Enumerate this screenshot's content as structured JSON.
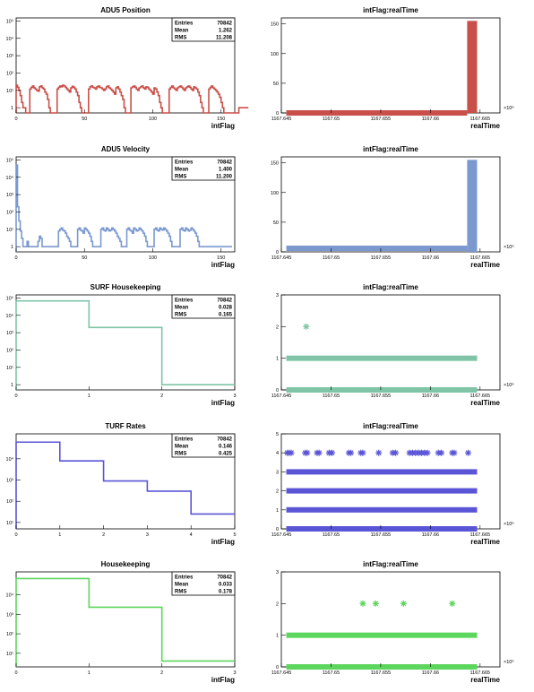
{
  "chart_data": [
    {
      "type": "bar",
      "title": "ADU5 Position",
      "xlabel": "intFlag",
      "ylabel": "",
      "xlim": [
        0,
        160
      ],
      "xticks": [
        0,
        50,
        100,
        150
      ],
      "yscale": "log",
      "ylim": [
        0.5,
        150000
      ],
      "yticks": [
        1,
        10,
        100,
        1000,
        10000,
        100000
      ],
      "color": "#c9504a",
      "stats": {
        "entries_label": "Entries",
        "entries": "70842",
        "mean_label": "Mean",
        "mean": "1.262",
        "rms_label": "RMS",
        "rms": "11.208"
      },
      "bins": {
        "x0": 0,
        "width": 1
      },
      "values": [
        20,
        15,
        10,
        5,
        2,
        1,
        1,
        0.5,
        0.5,
        0.5,
        12,
        15,
        18,
        14,
        12,
        10,
        9,
        16,
        18,
        14,
        12,
        8,
        6,
        3,
        1,
        0.5,
        0.5,
        0.5,
        0.5,
        0.5,
        12,
        15,
        18,
        16,
        20,
        18,
        15,
        12,
        10,
        8,
        14,
        17,
        15,
        12,
        8,
        5,
        2,
        1,
        0.5,
        0.5,
        0.5,
        0.5,
        0.5,
        12,
        16,
        18,
        15,
        14,
        12,
        16,
        18,
        15,
        14,
        12,
        10,
        12,
        16,
        18,
        14,
        12,
        10,
        8,
        6,
        14,
        16,
        12,
        8,
        5,
        3,
        1,
        0.5,
        0.5,
        0.5,
        0.5,
        14,
        16,
        18,
        15,
        12,
        10,
        14,
        16,
        18,
        14,
        12,
        16,
        15,
        12,
        10,
        8,
        6,
        14,
        12,
        8,
        5,
        2,
        1,
        0.5,
        0.5,
        0.5,
        0.5,
        0.5,
        12,
        15,
        18,
        14,
        12,
        10,
        14,
        16,
        18,
        15,
        12,
        10,
        14,
        16,
        18,
        15,
        12,
        10,
        16,
        14,
        12,
        8,
        5,
        2,
        1,
        0.5,
        0.5,
        0.5,
        0.5,
        12,
        15,
        18,
        14,
        12,
        10,
        8,
        6,
        4,
        2,
        1,
        0.5,
        0.5,
        0.5,
        0.5,
        0.5,
        0.5,
        0.5,
        0.5,
        0.5,
        0.5,
        0.5,
        1,
        1,
        1,
        1,
        1,
        1,
        1
      ]
    },
    {
      "type": "scatter",
      "title": "intFlag:realTime",
      "xlabel": "realTime",
      "ylabel": "",
      "xlim": [
        1167.645,
        1167.667
      ],
      "xticks": [
        1167.645,
        1167.65,
        1167.655,
        1167.66,
        1167.665
      ],
      "xtick_labels": [
        "1167.645",
        "1167.65",
        "1167.655",
        "1167.66",
        "1167.665"
      ],
      "x_multiplier": "×10⁶",
      "ylim": [
        0,
        160
      ],
      "yticks": [
        0,
        50,
        100,
        150
      ],
      "color": "#c9504a",
      "bands": [
        {
          "y": 0,
          "x_from": 1167.6455,
          "x_to": 1167.6637
        }
      ],
      "spike": {
        "x_from": 1167.6637,
        "x_to": 1167.6647,
        "y_from": 0,
        "y_to": 155
      }
    },
    {
      "type": "bar",
      "title": "ADU5 Velocity",
      "xlabel": "intFlag",
      "ylabel": "",
      "xlim": [
        0,
        160
      ],
      "xticks": [
        0,
        50,
        100,
        150
      ],
      "yscale": "log",
      "ylim": [
        0.5,
        150000
      ],
      "yticks": [
        1,
        10,
        100,
        1000,
        10000,
        100000
      ],
      "color": "#7b99cf",
      "stats": {
        "entries_label": "Entries",
        "entries": "70842",
        "mean_label": "Mean",
        "mean": "1.400",
        "rms_label": "RMS",
        "rms": "11.200"
      },
      "bins": {
        "x0": 0,
        "width": 1
      },
      "values": [
        50000,
        200,
        30,
        8,
        3,
        1,
        1,
        1,
        2,
        1,
        1,
        1,
        1,
        1,
        1,
        1,
        2,
        4,
        3,
        1,
        1,
        1,
        1,
        1,
        1,
        1,
        1,
        1,
        1,
        1,
        1,
        8,
        10,
        12,
        9,
        8,
        6,
        4,
        3,
        2,
        1,
        1,
        1,
        1,
        1,
        10,
        12,
        9,
        8,
        6,
        12,
        10,
        8,
        6,
        4,
        2,
        1,
        1,
        1,
        1,
        1,
        1,
        10,
        12,
        9,
        8,
        12,
        10,
        8,
        9,
        12,
        10,
        8,
        6,
        4,
        3,
        2,
        1,
        1,
        1,
        1,
        10,
        12,
        9,
        8,
        6,
        12,
        10,
        8,
        9,
        12,
        10,
        8,
        6,
        4,
        2,
        1,
        1,
        1,
        1,
        1,
        10,
        12,
        9,
        8,
        12,
        10,
        9,
        12,
        10,
        8,
        6,
        4,
        2,
        1,
        1,
        1,
        1,
        1,
        1,
        10,
        12,
        9,
        8,
        12,
        10,
        8,
        9,
        12,
        10,
        8,
        6,
        4,
        2,
        1,
        1,
        1,
        1,
        1,
        1,
        1,
        1,
        1,
        1,
        1,
        1,
        1,
        1,
        1,
        1,
        1,
        1,
        1,
        1,
        1,
        1,
        1,
        1
      ]
    },
    {
      "type": "scatter",
      "title": "intFlag:realTime",
      "xlabel": "realTime",
      "ylabel": "",
      "xlim": [
        1167.645,
        1167.667
      ],
      "xticks": [
        1167.645,
        1167.65,
        1167.655,
        1167.66,
        1167.665
      ],
      "xtick_labels": [
        "1167.645",
        "1167.65",
        "1167.655",
        "1167.66",
        "1167.665"
      ],
      "x_multiplier": "×10⁶",
      "ylim": [
        0,
        160
      ],
      "yticks": [
        0,
        50,
        100,
        150
      ],
      "color": "#7b99cf",
      "bands": [
        {
          "y": 6,
          "x_from": 1167.6455,
          "x_to": 1167.6637
        }
      ],
      "spike": {
        "x_from": 1167.6637,
        "x_to": 1167.6647,
        "y_from": 0,
        "y_to": 155
      }
    },
    {
      "type": "bar",
      "title": "SURF Housekeeping",
      "xlabel": "intFlag",
      "ylabel": "",
      "xlim": [
        0,
        3
      ],
      "xticks": [
        0,
        1,
        2,
        3
      ],
      "yscale": "log",
      "ylim": [
        0.5,
        150000
      ],
      "yticks": [
        1,
        10,
        100,
        1000,
        10000,
        100000
      ],
      "color": "#7fc4a6",
      "stats": {
        "entries_label": "Entries",
        "entries": "70842",
        "mean_label": "Mean",
        "mean": "0.028",
        "rms_label": "RMS",
        "rms": "0.165"
      },
      "bins": {
        "x0": 0,
        "width": 1
      },
      "values": [
        68000,
        2000,
        1
      ]
    },
    {
      "type": "scatter",
      "title": "intFlag:realTime",
      "xlabel": "realTime",
      "ylabel": "",
      "xlim": [
        1167.645,
        1167.667
      ],
      "xticks": [
        1167.645,
        1167.65,
        1167.655,
        1167.66,
        1167.665
      ],
      "xtick_labels": [
        "1167.645",
        "1167.65",
        "1167.655",
        "1167.66",
        "1167.665"
      ],
      "x_multiplier": "×10⁶",
      "ylim": [
        0,
        3
      ],
      "yticks": [
        0,
        1,
        2,
        3
      ],
      "color": "#7fc4a6",
      "bands": [
        {
          "y": 0,
          "x_from": 1167.6455,
          "x_to": 1167.6647
        },
        {
          "y": 1,
          "x_from": 1167.6455,
          "x_to": 1167.6647
        }
      ],
      "points": [
        {
          "x": 1167.6475,
          "y": 2
        }
      ]
    },
    {
      "type": "bar",
      "title": "TURF Rates",
      "xlabel": "intFlag",
      "ylabel": "",
      "xlim": [
        0,
        5
      ],
      "xticks": [
        0,
        1,
        2,
        3,
        4,
        5
      ],
      "yscale": "log",
      "ylim": [
        5,
        150000
      ],
      "yticks": [
        10,
        100,
        1000,
        10000
      ],
      "color": "#5a55d6",
      "stats": {
        "entries_label": "Entries",
        "entries": "70842",
        "mean_label": "Mean",
        "mean": "0.146",
        "rms_label": "RMS",
        "rms": "0.425"
      },
      "bins": {
        "x0": 0,
        "width": 1
      },
      "values": [
        61000,
        8000,
        900,
        300,
        25
      ]
    },
    {
      "type": "scatter",
      "title": "intFlag:realTime",
      "xlabel": "realTime",
      "ylabel": "",
      "xlim": [
        1167.645,
        1167.667
      ],
      "xticks": [
        1167.645,
        1167.65,
        1167.655,
        1167.66,
        1167.665
      ],
      "xtick_labels": [
        "1167.645",
        "1167.65",
        "1167.655",
        "1167.66",
        "1167.665"
      ],
      "x_multiplier": "×10⁶",
      "ylim": [
        0,
        5
      ],
      "yticks": [
        0,
        1,
        2,
        3,
        4,
        5
      ],
      "color": "#5a55d6",
      "bands": [
        {
          "y": 0,
          "x_from": 1167.6455,
          "x_to": 1167.6647
        },
        {
          "y": 1,
          "x_from": 1167.6455,
          "x_to": 1167.6647
        },
        {
          "y": 2,
          "x_from": 1167.6455,
          "x_to": 1167.6647
        },
        {
          "y": 3,
          "x_from": 1167.6455,
          "x_to": 1167.6647
        }
      ],
      "points": [
        {
          "x": 1167.6456,
          "y": 4
        },
        {
          "x": 1167.6458,
          "y": 4
        },
        {
          "x": 1167.646,
          "y": 4
        },
        {
          "x": 1167.6474,
          "y": 4
        },
        {
          "x": 1167.6476,
          "y": 4
        },
        {
          "x": 1167.6486,
          "y": 4
        },
        {
          "x": 1167.6488,
          "y": 4
        },
        {
          "x": 1167.6498,
          "y": 4
        },
        {
          "x": 1167.6501,
          "y": 4
        },
        {
          "x": 1167.6518,
          "y": 4
        },
        {
          "x": 1167.652,
          "y": 4
        },
        {
          "x": 1167.653,
          "y": 4
        },
        {
          "x": 1167.6532,
          "y": 4
        },
        {
          "x": 1167.6548,
          "y": 4
        },
        {
          "x": 1167.6562,
          "y": 4
        },
        {
          "x": 1167.6565,
          "y": 4
        },
        {
          "x": 1167.6579,
          "y": 4
        },
        {
          "x": 1167.6582,
          "y": 4
        },
        {
          "x": 1167.6585,
          "y": 4
        },
        {
          "x": 1167.6588,
          "y": 4
        },
        {
          "x": 1167.6591,
          "y": 4
        },
        {
          "x": 1167.6594,
          "y": 4
        },
        {
          "x": 1167.6597,
          "y": 4
        },
        {
          "x": 1167.6608,
          "y": 4
        },
        {
          "x": 1167.6611,
          "y": 4
        },
        {
          "x": 1167.6622,
          "y": 4
        },
        {
          "x": 1167.6624,
          "y": 4
        },
        {
          "x": 1167.6638,
          "y": 4
        }
      ]
    },
    {
      "type": "bar",
      "title": "Housekeeping",
      "xlabel": "intFlag",
      "ylabel": "",
      "xlim": [
        0,
        3
      ],
      "xticks": [
        0,
        1,
        2,
        3
      ],
      "yscale": "log",
      "ylim": [
        2,
        150000
      ],
      "yticks": [
        10,
        100,
        1000,
        10000
      ],
      "color": "#5dd65d",
      "stats": {
        "entries_label": "Entries",
        "entries": "70842",
        "mean_label": "Mean",
        "mean": "0.033",
        "rms_label": "RMS",
        "rms": "0.178"
      },
      "bins": {
        "x0": 0,
        "width": 1
      },
      "values": [
        68000,
        2300,
        4
      ]
    },
    {
      "type": "scatter",
      "title": "intFlag:realTime",
      "xlabel": "realTime",
      "ylabel": "",
      "xlim": [
        1167.645,
        1167.667
      ],
      "xticks": [
        1167.645,
        1167.65,
        1167.655,
        1167.66,
        1167.665
      ],
      "xtick_labels": [
        "1167.645",
        "1167.65",
        "1167.655",
        "1167.66",
        "1167.665"
      ],
      "x_multiplier": "×10⁶",
      "ylim": [
        0,
        3
      ],
      "yticks": [
        0,
        1,
        2,
        3
      ],
      "color": "#5dd65d",
      "bands": [
        {
          "y": 0,
          "x_from": 1167.6455,
          "x_to": 1167.6647
        },
        {
          "y": 1,
          "x_from": 1167.6455,
          "x_to": 1167.6647
        }
      ],
      "points": [
        {
          "x": 1167.6532,
          "y": 2
        },
        {
          "x": 1167.6545,
          "y": 2
        },
        {
          "x": 1167.6573,
          "y": 2
        },
        {
          "x": 1167.6622,
          "y": 2
        }
      ]
    }
  ]
}
